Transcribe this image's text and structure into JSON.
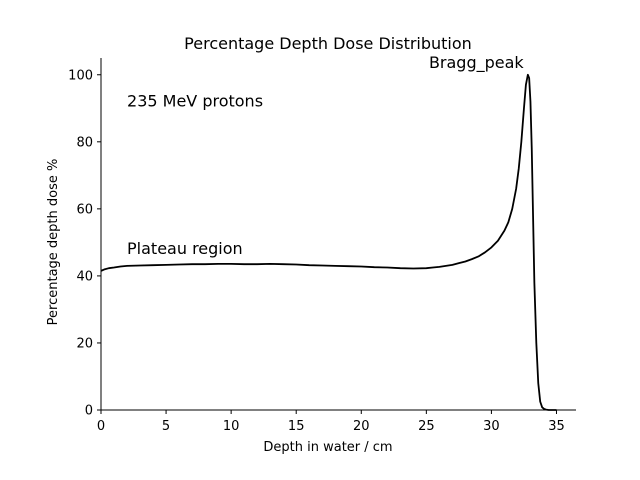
{
  "chart_data": {
    "type": "line",
    "title": "Percentage Depth Dose Distribution",
    "xlabel": "Depth in water / cm",
    "ylabel": "Percentage depth dose %",
    "xlim": [
      0,
      36.5
    ],
    "ylim": [
      0,
      105
    ],
    "xticks": [
      0,
      5,
      10,
      15,
      20,
      25,
      30,
      35
    ],
    "yticks": [
      0,
      20,
      40,
      60,
      80,
      100
    ],
    "grid": false,
    "line_color": "#000000",
    "series": [
      {
        "x": [
          0,
          0.3,
          0.6,
          1,
          1.5,
          2,
          3,
          4,
          5,
          6,
          7,
          8,
          9,
          10,
          11,
          12,
          13,
          14,
          15,
          16,
          17,
          18,
          19,
          20,
          21,
          22,
          23,
          24,
          25,
          25.5,
          26,
          26.5,
          27,
          27.5,
          28,
          28.5,
          29,
          29.5,
          30,
          30.5,
          31,
          31.3,
          31.6,
          31.9,
          32.1,
          32.3,
          32.5,
          32.65,
          32.8,
          32.9,
          33.0,
          33.1,
          33.2,
          33.3,
          33.45,
          33.6,
          33.75,
          33.9,
          34.05,
          34.2,
          34.4,
          34.7,
          35.0
        ],
        "y": [
          41.5,
          42.0,
          42.3,
          42.5,
          42.8,
          43.0,
          43.1,
          43.2,
          43.3,
          43.4,
          43.5,
          43.5,
          43.6,
          43.6,
          43.5,
          43.5,
          43.6,
          43.5,
          43.4,
          43.2,
          43.1,
          43.0,
          42.9,
          42.8,
          42.6,
          42.5,
          42.3,
          42.2,
          42.3,
          42.5,
          42.7,
          43.0,
          43.3,
          43.8,
          44.3,
          45.0,
          45.8,
          47.0,
          48.5,
          50.5,
          53.5,
          56.0,
          60.0,
          66.0,
          72.0,
          80.0,
          90.0,
          97.0,
          100.0,
          99.0,
          92.0,
          78.0,
          58.0,
          38.0,
          20.0,
          8.0,
          2.5,
          0.8,
          0.3,
          0.1,
          0.0,
          0.0,
          0.0
        ]
      }
    ],
    "annotations": [
      {
        "text": "235 MeV protons",
        "x": 2.0,
        "y": 90.5
      },
      {
        "text": "Plateau region",
        "x": 2.0,
        "y": 46.5
      },
      {
        "text": "Bragg_peak",
        "x": 25.2,
        "y": 102
      }
    ]
  }
}
